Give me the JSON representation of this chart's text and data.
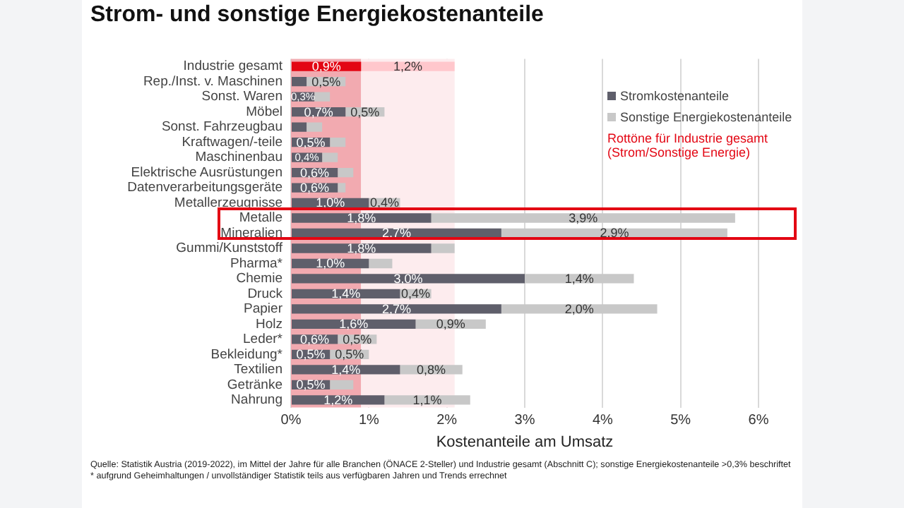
{
  "chart_data": {
    "type": "bar",
    "orientation": "horizontal",
    "stacked": true,
    "title": "Strom- und sonstige Energiekostenanteile",
    "xlabel": "Kostenanteile am Umsatz",
    "categories": [
      "Industrie gesamt",
      "Rep./Inst. v. Maschinen",
      "Sonst. Waren",
      "Möbel",
      "Sonst. Fahrzeugbau",
      "Kraftwagen/-teile",
      "Maschinenbau",
      "Elektrische Ausrüstungen",
      "Datenverarbeitungsgeräte",
      "Metallerzeugnisse",
      "Metalle",
      "Mineralien",
      "Gummi/Kunststoff",
      "Pharma*",
      "Chemie",
      "Druck",
      "Papier",
      "Holz",
      "Leder*",
      "Bekleidung*",
      "Textilien",
      "Getränke",
      "Nahrung"
    ],
    "series": [
      {
        "name": "Stromkostenanteile",
        "color": "#5f5f6b",
        "colors": [
          "#e30613",
          "#5f5f6b",
          "#5f5f6b",
          "#5f5f6b",
          "#5f5f6b",
          "#5f5f6b",
          "#5f5f6b",
          "#5f5f6b",
          "#5f5f6b",
          "#5f5f6b",
          "#5f5f6b",
          "#5f5f6b",
          "#5f5f6b",
          "#5f5f6b",
          "#5f5f6b",
          "#5f5f6b",
          "#5f5f6b",
          "#5f5f6b",
          "#5f5f6b",
          "#5f5f6b",
          "#5f5f6b",
          "#5f5f6b",
          "#5f5f6b"
        ],
        "values": [
          0.9,
          0.2,
          0.3,
          0.7,
          0.2,
          0.5,
          0.4,
          0.6,
          0.6,
          1.0,
          1.8,
          2.7,
          1.8,
          1.0,
          3.0,
          1.4,
          2.7,
          1.6,
          0.6,
          0.5,
          1.4,
          0.5,
          1.2
        ],
        "value_labels": [
          "0,9%",
          null,
          "0,3%",
          "0,7%",
          null,
          "0,5%",
          "0,4%",
          "0,6%",
          "0,6%",
          "1,0%",
          "1,8%",
          "2,7%",
          "1,8%",
          "1,0%",
          "3,0%",
          "1,4%",
          "2,7%",
          "1,6%",
          "0,6%",
          "0,5%",
          "1,4%",
          "0,5%",
          "1,2%"
        ]
      },
      {
        "name": "Sonstige Energiekostenanteile",
        "color": "#c8c8c8",
        "colors": [
          "#ffc7cc",
          "#c8c8c8",
          "#c8c8c8",
          "#c8c8c8",
          "#c8c8c8",
          "#c8c8c8",
          "#c8c8c8",
          "#c8c8c8",
          "#c8c8c8",
          "#c8c8c8",
          "#c8c8c8",
          "#c8c8c8",
          "#c8c8c8",
          "#c8c8c8",
          "#c8c8c8",
          "#c8c8c8",
          "#c8c8c8",
          "#c8c8c8",
          "#c8c8c8",
          "#c8c8c8",
          "#c8c8c8",
          "#c8c8c8",
          "#c8c8c8"
        ],
        "values": [
          1.2,
          0.5,
          0.2,
          0.5,
          0.2,
          0.2,
          0.2,
          0.2,
          0.1,
          0.4,
          3.9,
          2.9,
          0.3,
          0.3,
          1.4,
          0.4,
          2.0,
          0.9,
          0.5,
          0.5,
          0.8,
          0.3,
          1.1
        ],
        "value_labels": [
          "1,2%",
          "0,5%",
          null,
          "0,5%",
          null,
          null,
          null,
          null,
          null,
          "0,4%",
          "3,9%",
          "2,9%",
          null,
          null,
          "1,4%",
          "0,4%",
          "2,0%",
          "0,9%",
          "0,5%",
          "0,5%",
          "0,8%",
          null,
          "1,1%"
        ]
      }
    ],
    "xlim": [
      0,
      6
    ],
    "xticks": [
      {
        "value": 0,
        "label": "0%"
      },
      {
        "value": 1,
        "label": "1%"
      },
      {
        "value": 2,
        "label": "2%"
      },
      {
        "value": 3,
        "label": "3%"
      },
      {
        "value": 4,
        "label": "4%"
      },
      {
        "value": 5,
        "label": "5%"
      },
      {
        "value": 6,
        "label": "6%"
      }
    ],
    "grid": "x",
    "legend": "top right",
    "bands": [
      {
        "axis": "x",
        "from": 0,
        "to": 0.9,
        "color": "#f2aab0"
      },
      {
        "axis": "x",
        "from": 0.9,
        "to": 2.1,
        "color": "#fdecee"
      }
    ],
    "annotations": [
      "Rottöne für Industrie gesamt (Strom/Sonstige Energie)",
      "Quelle: Statistik Austria (2019-2022), im Mittel der Jahre für alle Branchen (ÖNACE 2-Steller) und Industrie gesamt (Abschnitt C); sonstige Energiekostenanteile >0,3% beschriftet",
      "* aufgrund Geheimhaltungen / unvollständiger Statistik teils aus verfügbaren Jahren und Trends errechnet"
    ]
  }
}
